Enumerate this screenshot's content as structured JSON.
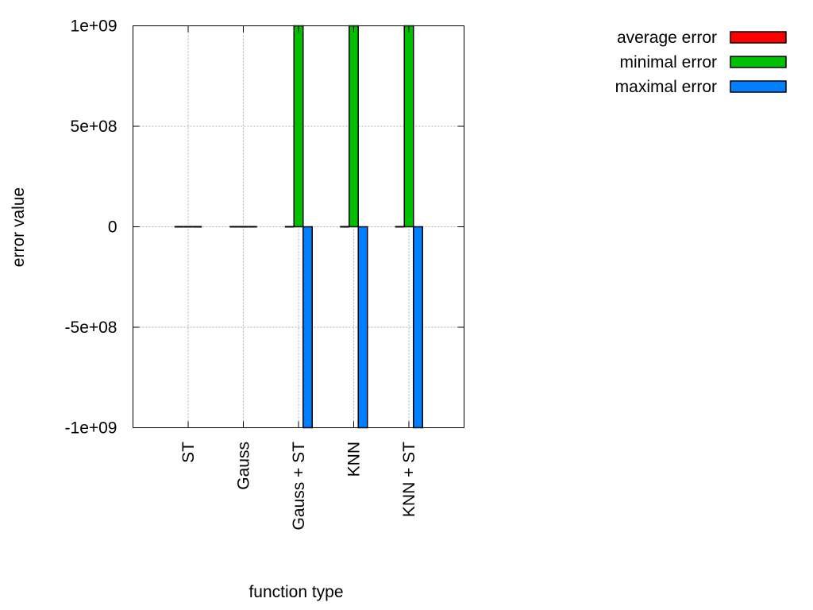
{
  "chart_data": {
    "type": "bar",
    "title": "",
    "xlabel": "function type",
    "ylabel": "error value",
    "ylim": [
      -1000000000,
      1000000000
    ],
    "yticks": [
      {
        "value": 1000000000,
        "label": "1e+09"
      },
      {
        "value": 500000000,
        "label": "5e+08"
      },
      {
        "value": 0,
        "label": "0"
      },
      {
        "value": -500000000,
        "label": "-5e+08"
      },
      {
        "value": -1000000000,
        "label": "-1e+09"
      }
    ],
    "categories": [
      "ST",
      "Gauss",
      "Gauss + ST",
      "KNN",
      "KNN + ST"
    ],
    "grid": true,
    "legend_position": "top-right, outside plot",
    "series": [
      {
        "name": "average error",
        "color": "#ff0000",
        "values": [
          0,
          0,
          0,
          0,
          0
        ]
      },
      {
        "name": "minimal error",
        "color": "#00c000",
        "values": [
          0,
          0,
          1000000000,
          1000000000,
          1000000000
        ]
      },
      {
        "name": "maximal error",
        "color": "#0080ff",
        "values": [
          0,
          0,
          -1000000000,
          -1000000000,
          -1000000000
        ]
      }
    ]
  }
}
